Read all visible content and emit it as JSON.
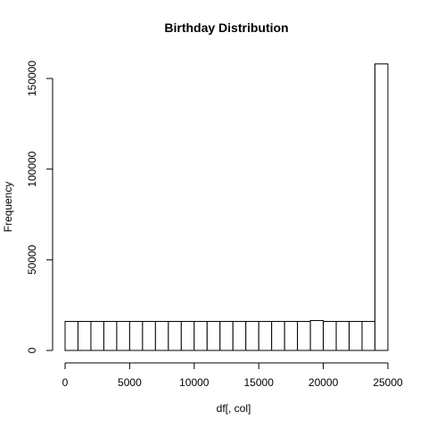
{
  "chart_data": {
    "type": "bar",
    "title": "Birthday  Distribution",
    "xlabel": "df[, col]",
    "ylabel": "Frequency",
    "xlim": [
      0,
      25000
    ],
    "ylim": [
      0,
      160000
    ],
    "x_ticks": [
      0,
      5000,
      10000,
      15000,
      20000,
      25000
    ],
    "y_ticks": [
      0,
      50000,
      100000,
      150000
    ],
    "bin_width": 1000,
    "bins": [
      {
        "x0": 0,
        "x1": 1000,
        "value": 16000
      },
      {
        "x0": 1000,
        "x1": 2000,
        "value": 16000
      },
      {
        "x0": 2000,
        "x1": 3000,
        "value": 16000
      },
      {
        "x0": 3000,
        "x1": 4000,
        "value": 16000
      },
      {
        "x0": 4000,
        "x1": 5000,
        "value": 16000
      },
      {
        "x0": 5000,
        "x1": 6000,
        "value": 16000
      },
      {
        "x0": 6000,
        "x1": 7000,
        "value": 16000
      },
      {
        "x0": 7000,
        "x1": 8000,
        "value": 16000
      },
      {
        "x0": 8000,
        "x1": 9000,
        "value": 16000
      },
      {
        "x0": 9000,
        "x1": 10000,
        "value": 16000
      },
      {
        "x0": 10000,
        "x1": 11000,
        "value": 16000
      },
      {
        "x0": 11000,
        "x1": 12000,
        "value": 16000
      },
      {
        "x0": 12000,
        "x1": 13000,
        "value": 16000
      },
      {
        "x0": 13000,
        "x1": 14000,
        "value": 16000
      },
      {
        "x0": 14000,
        "x1": 15000,
        "value": 16000
      },
      {
        "x0": 15000,
        "x1": 16000,
        "value": 16000
      },
      {
        "x0": 16000,
        "x1": 17000,
        "value": 16000
      },
      {
        "x0": 17000,
        "x1": 18000,
        "value": 16000
      },
      {
        "x0": 18000,
        "x1": 19000,
        "value": 16000
      },
      {
        "x0": 19000,
        "x1": 20000,
        "value": 16500
      },
      {
        "x0": 20000,
        "x1": 21000,
        "value": 16000
      },
      {
        "x0": 21000,
        "x1": 22000,
        "value": 16000
      },
      {
        "x0": 22000,
        "x1": 23000,
        "value": 16000
      },
      {
        "x0": 23000,
        "x1": 24000,
        "value": 16000
      },
      {
        "x0": 24000,
        "x1": 25000,
        "value": 158000
      }
    ],
    "grid": false,
    "legend": "none"
  }
}
